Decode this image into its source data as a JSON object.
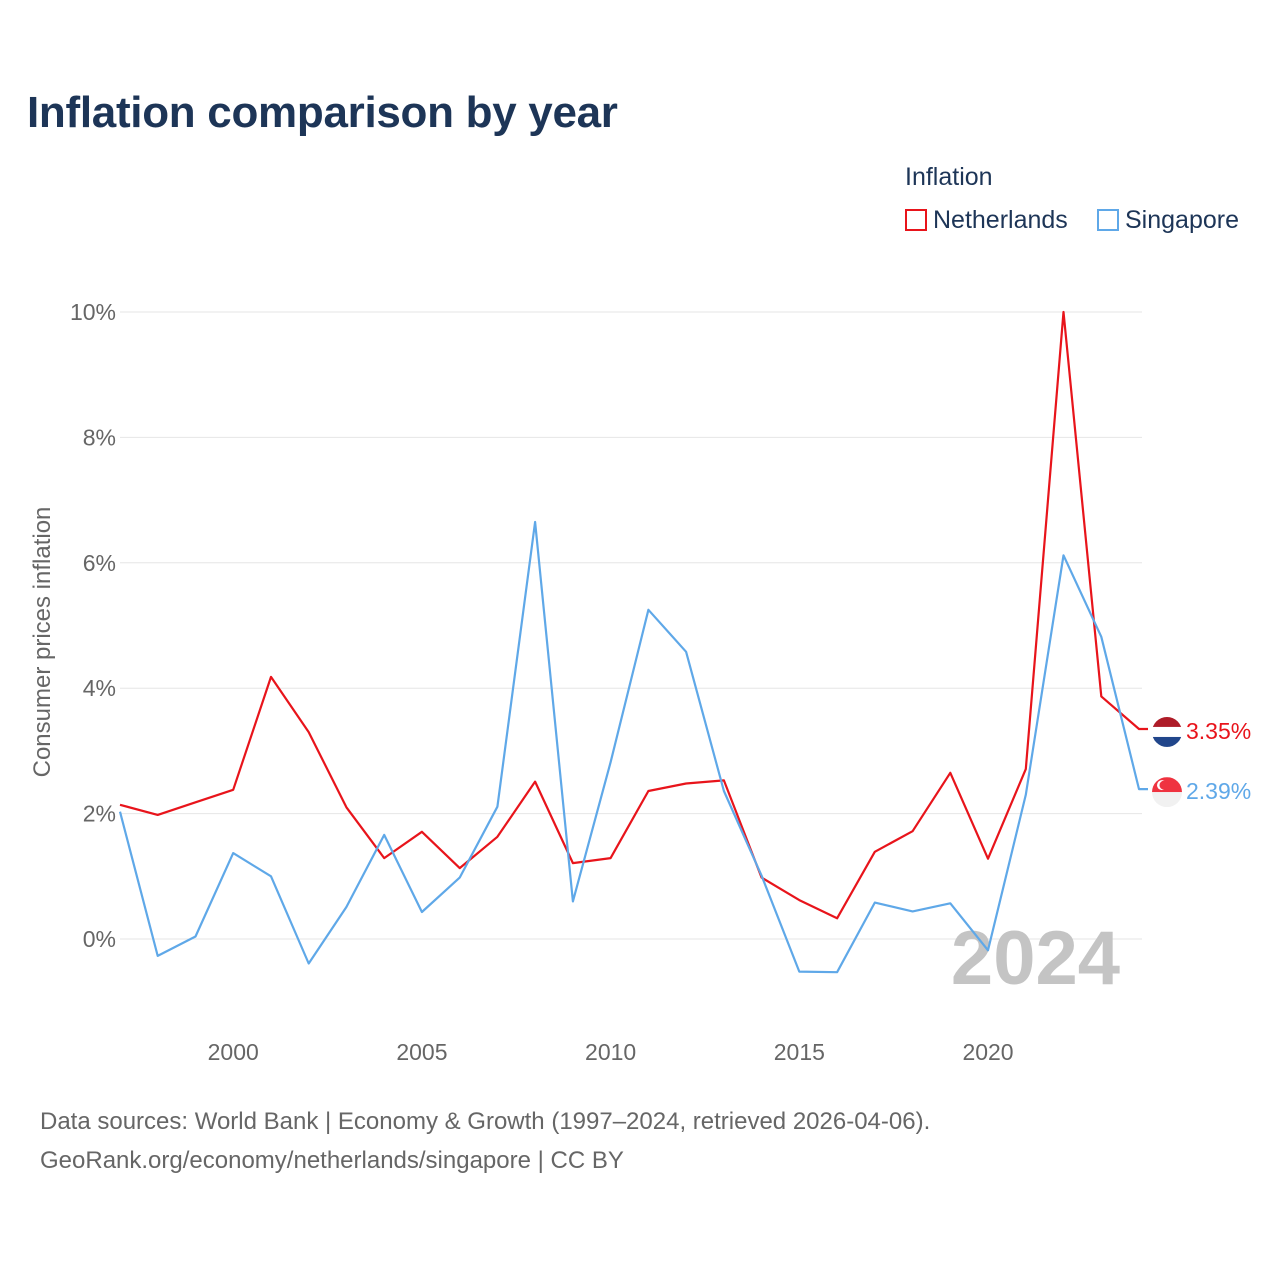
{
  "title": "Inflation comparison by year",
  "legend": {
    "title": "Inflation",
    "items": [
      {
        "label": "Netherlands",
        "color": "#e8141b"
      },
      {
        "label": "Singapore",
        "color": "#5fa8e8"
      }
    ]
  },
  "watermark_year": "2024",
  "footer": {
    "line1": "Data sources: World Bank | Economy & Growth (1997–2024, retrieved 2026-04-06).",
    "line2": "GeoRank.org/economy/netherlands/singapore | CC BY"
  },
  "chart_data": {
    "type": "line",
    "title": "Inflation comparison by year",
    "xlabel": "",
    "ylabel": "Consumer prices inflation",
    "xlim": [
      1997,
      2024
    ],
    "ylim": [
      -1.2,
      10
    ],
    "x_ticks": [
      2000,
      2005,
      2010,
      2015,
      2020
    ],
    "x_tick_labels": [
      "2000",
      "2005",
      "2010",
      "2015",
      "2020"
    ],
    "y_ticks": [
      0,
      2,
      4,
      6,
      8,
      10
    ],
    "y_tick_labels": [
      "0%",
      "2%",
      "4%",
      "6%",
      "8%",
      "10%"
    ],
    "grid": true,
    "legend_position": "top-right",
    "x": [
      1997,
      1998,
      1999,
      2000,
      2001,
      2002,
      2003,
      2004,
      2005,
      2006,
      2007,
      2008,
      2009,
      2010,
      2011,
      2012,
      2013,
      2014,
      2015,
      2016,
      2017,
      2018,
      2019,
      2020,
      2021,
      2022,
      2023,
      2024
    ],
    "series": [
      {
        "name": "Netherlands",
        "color": "#e8141b",
        "end_label": "3.35%",
        "values": [
          2.14,
          1.98,
          2.18,
          2.38,
          4.18,
          3.3,
          2.1,
          1.29,
          1.71,
          1.13,
          1.63,
          2.51,
          1.21,
          1.29,
          2.36,
          2.48,
          2.53,
          0.98,
          0.62,
          0.33,
          1.39,
          1.72,
          2.65,
          1.28,
          2.71,
          10.0,
          3.87,
          3.35
        ]
      },
      {
        "name": "Singapore",
        "color": "#5fa8e8",
        "end_label": "2.39%",
        "values": [
          2.03,
          -0.27,
          0.04,
          1.37,
          1.0,
          -0.39,
          0.51,
          1.66,
          0.43,
          0.98,
          2.11,
          6.65,
          0.6,
          2.82,
          5.25,
          4.58,
          2.36,
          1.01,
          -0.52,
          -0.53,
          0.58,
          0.44,
          0.57,
          -0.18,
          2.3,
          6.12,
          4.82,
          2.39
        ]
      }
    ]
  }
}
